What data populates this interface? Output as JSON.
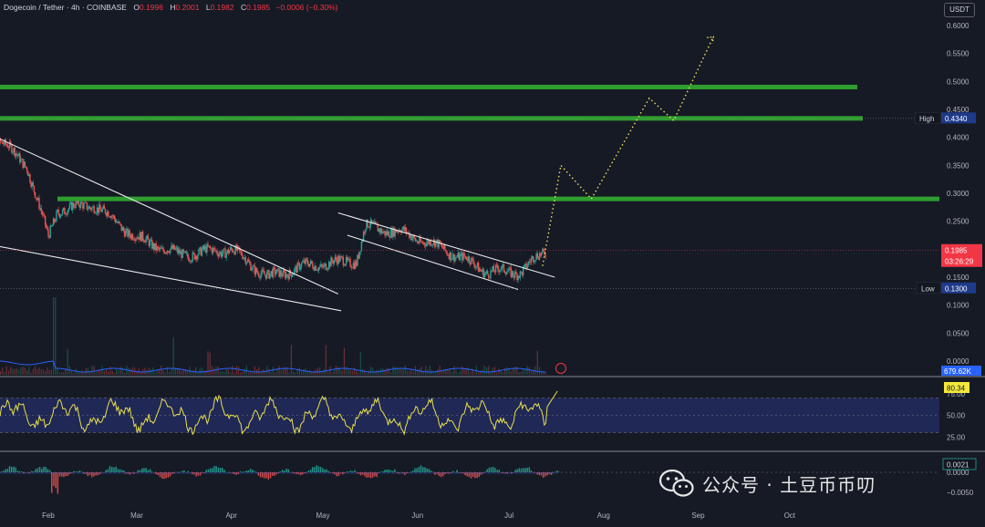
{
  "header": {
    "symbol": "Dogecoin / Tether · 4h · COINBASE",
    "open_label": "O",
    "open": "0.1996",
    "high_label": "H",
    "high": "0.2001",
    "low_label": "L",
    "low": "0.1982",
    "close_label": "C",
    "close": "0.1985",
    "change": "−0.0006 (−0.30%)"
  },
  "currency_button": "USDT",
  "watermark": {
    "text": "公众号 · 土豆币币叨",
    "icon": "wechat-icon"
  },
  "colors": {
    "background": "#161a25",
    "up": "#26a69a",
    "down": "#ef5350",
    "resistance": "#2f9e2f",
    "trendline": "#e8e8e8",
    "projection": "#f0e060",
    "rsi_line": "#e8e04a",
    "rsi_band": "#2a3580",
    "volume_ma": "#2962ff"
  },
  "chart_data": [
    {
      "type": "candlestick",
      "name": "price",
      "y_axis_ticks": [
        "0.6000",
        "0.5500",
        "0.5000",
        "0.4500",
        "0.4000",
        "0.3500",
        "0.3000",
        "0.2500",
        "0.2000",
        "0.1500",
        "0.1000",
        "0.0500",
        "0.0000"
      ],
      "ylim": [
        0.0,
        0.6
      ],
      "x_ticks": [
        "Feb",
        "Mar",
        "Apr",
        "May",
        "Jun",
        "Jul",
        "Aug",
        "Sep",
        "Oct"
      ],
      "key_points": [
        {
          "date": "2024-01-11",
          "close": 0.42
        },
        {
          "date": "2024-01-25",
          "close": 0.35
        },
        {
          "date": "2024-02-01",
          "close": 0.22
        },
        {
          "date": "2024-02-04",
          "close": 0.27
        },
        {
          "date": "2024-02-16",
          "close": 0.28
        },
        {
          "date": "2024-03-01",
          "close": 0.22
        },
        {
          "date": "2024-03-15",
          "close": 0.19
        },
        {
          "date": "2024-04-01",
          "close": 0.2
        },
        {
          "date": "2024-04-13",
          "close": 0.15
        },
        {
          "date": "2024-04-25",
          "close": 0.17
        },
        {
          "date": "2024-05-12",
          "close": 0.18
        },
        {
          "date": "2024-05-15",
          "close": 0.24
        },
        {
          "date": "2024-05-27",
          "close": 0.23
        },
        {
          "date": "2024-06-10",
          "close": 0.2
        },
        {
          "date": "2024-06-24",
          "close": 0.16
        },
        {
          "date": "2024-07-05",
          "close": 0.16
        },
        {
          "date": "2024-07-13",
          "close": 0.1985
        }
      ],
      "resistance_levels": [
        0.49,
        0.434,
        0.29
      ],
      "trendlines": [
        {
          "from": {
            "date": "2024-01-11",
            "price": 0.41
          },
          "to": {
            "date": "2024-05-06",
            "price": 0.12
          }
        },
        {
          "from": {
            "date": "2024-01-11",
            "price": 0.21
          },
          "to": {
            "date": "2024-05-07",
            "price": 0.09
          }
        },
        {
          "from": {
            "date": "2024-05-06",
            "price": 0.265
          },
          "to": {
            "date": "2024-07-16",
            "price": 0.15
          }
        },
        {
          "from": {
            "date": "2024-05-09",
            "price": 0.225
          },
          "to": {
            "date": "2024-07-04",
            "price": 0.128
          }
        }
      ],
      "projection": [
        {
          "date": "2024-07-12",
          "price": 0.17
        },
        {
          "date": "2024-07-18",
          "price": 0.35
        },
        {
          "date": "2024-07-28",
          "price": 0.29
        },
        {
          "date": "2024-08-16",
          "price": 0.47
        },
        {
          "date": "2024-08-24",
          "price": 0.43
        },
        {
          "date": "2024-09-06",
          "price": 0.58
        }
      ],
      "labels": {
        "high_label": "High",
        "high_value": "0.4340",
        "last_value": "0.1985",
        "countdown": "03:26:29",
        "low_label": "Low",
        "low_value": "0.1300"
      }
    },
    {
      "type": "bar",
      "name": "volume",
      "last_value": "679.62K"
    },
    {
      "type": "line",
      "name": "RSI",
      "ticks": [
        "75.00",
        "50.00",
        "25.00"
      ],
      "band": [
        30,
        70
      ],
      "ylim": [
        10,
        90
      ],
      "last_value": "80.34"
    },
    {
      "type": "bar",
      "name": "MACD histogram",
      "ticks": [
        "0.0000",
        "−0.0050"
      ],
      "last_value": "0.0021"
    }
  ]
}
